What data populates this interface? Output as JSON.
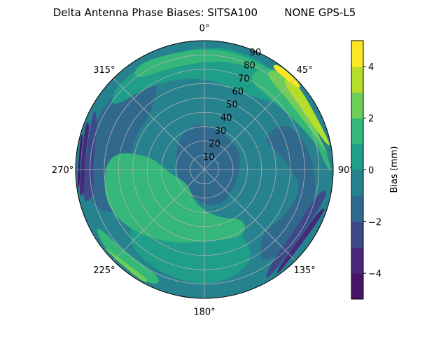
{
  "chart_data": {
    "type": "polar-contour",
    "title": "Delta Antenna Phase Biases: SITSA100        NONE GPS-L5",
    "angle_ticks": [
      {
        "deg": 0,
        "label": "0°"
      },
      {
        "deg": 45,
        "label": "45°"
      },
      {
        "deg": 90,
        "label": "90°"
      },
      {
        "deg": 135,
        "label": "135°"
      },
      {
        "deg": 180,
        "label": "180°"
      },
      {
        "deg": 225,
        "label": "225°"
      },
      {
        "deg": 270,
        "label": "270°"
      },
      {
        "deg": 315,
        "label": "315°"
      }
    ],
    "radial_ticks": [
      10,
      20,
      30,
      40,
      50,
      60,
      70,
      80,
      90
    ],
    "radial_range": [
      0,
      90
    ],
    "angle_direction": "clockwise",
    "angle_zero": "north",
    "colorbar": {
      "label": "Bias (mm)",
      "range": [
        -5,
        5
      ],
      "levels": [
        -5,
        -4,
        -3,
        -2,
        -1,
        0,
        1,
        2,
        3,
        4,
        5
      ],
      "ticks": [
        -4,
        -2,
        0,
        2,
        4
      ],
      "tick_labels": [
        "−4",
        "−2",
        "0",
        "2",
        "4"
      ],
      "colormap": "viridis",
      "colors": [
        "#471365",
        "#482878",
        "#3e4989",
        "#31688e",
        "#26828e",
        "#1f9e89",
        "#35b779",
        "#6ece58",
        "#b5de2b",
        "#fde725"
      ]
    },
    "regions": [
      {
        "level": [
          -2,
          -1
        ],
        "points": [
          [
            0,
            35
          ],
          [
            60,
            30
          ],
          [
            110,
            25
          ],
          [
            160,
            30
          ],
          [
            210,
            22
          ],
          [
            260,
            20
          ],
          [
            320,
            30
          ]
        ]
      },
      {
        "level": [
          -2,
          -1
        ],
        "points": [
          [
            240,
            60
          ],
          [
            260,
            50
          ],
          [
            290,
            55
          ],
          [
            320,
            55
          ],
          [
            335,
            75
          ],
          [
            310,
            85
          ],
          [
            280,
            86
          ],
          [
            250,
            85
          ]
        ]
      },
      {
        "level": [
          -2,
          -1
        ],
        "points": [
          [
            60,
            45
          ],
          [
            80,
            55
          ],
          [
            100,
            70
          ],
          [
            120,
            65
          ],
          [
            140,
            60
          ],
          [
            150,
            80
          ],
          [
            120,
            84
          ],
          [
            90,
            80
          ],
          [
            60,
            70
          ]
        ]
      },
      {
        "level": [
          0,
          1
        ],
        "points": [
          [
            300,
            80
          ],
          [
            330,
            70
          ],
          [
            0,
            65
          ],
          [
            30,
            60
          ],
          [
            50,
            70
          ],
          [
            60,
            82
          ],
          [
            30,
            88
          ],
          [
            0,
            89
          ],
          [
            320,
            88
          ]
        ]
      },
      {
        "level": [
          0,
          1
        ],
        "points": [
          [
            150,
            45
          ],
          [
            180,
            40
          ],
          [
            220,
            40
          ],
          [
            240,
            60
          ],
          [
            220,
            80
          ],
          [
            180,
            85
          ],
          [
            150,
            75
          ]
        ]
      },
      {
        "level": [
          1,
          2
        ],
        "points": [
          [
            195,
            25
          ],
          [
            230,
            15
          ],
          [
            265,
            25
          ],
          [
            285,
            40
          ],
          [
            280,
            70
          ],
          [
            250,
            75
          ],
          [
            225,
            65
          ],
          [
            200,
            55
          ],
          [
            180,
            50
          ],
          [
            150,
            55
          ],
          [
            140,
            45
          ],
          [
            165,
            35
          ]
        ]
      },
      {
        "level": [
          1,
          2
        ],
        "points": [
          [
            320,
            80
          ],
          [
            345,
            75
          ],
          [
            10,
            78
          ],
          [
            35,
            82
          ],
          [
            50,
            88
          ],
          [
            10,
            89
          ],
          [
            330,
            89
          ]
        ]
      },
      {
        "level": [
          1,
          2
        ],
        "points": [
          [
            200,
            82
          ],
          [
            225,
            80
          ],
          [
            245,
            86
          ],
          [
            230,
            90
          ],
          [
            205,
            90
          ]
        ]
      },
      {
        "level": [
          2,
          3
        ],
        "points": [
          [
            205,
            87
          ],
          [
            225,
            86
          ],
          [
            235,
            90
          ],
          [
            210,
            90
          ]
        ]
      },
      {
        "level": [
          1,
          2
        ],
        "points": [
          [
            25,
            70
          ],
          [
            45,
            68
          ],
          [
            75,
            80
          ],
          [
            90,
            86
          ],
          [
            90,
            90
          ],
          [
            45,
            90
          ],
          [
            30,
            84
          ]
        ]
      },
      {
        "level": [
          2,
          3
        ],
        "points": [
          [
            30,
            80
          ],
          [
            50,
            76
          ],
          [
            78,
            84
          ],
          [
            88,
            90
          ],
          [
            40,
            90
          ]
        ]
      },
      {
        "level": [
          3,
          4
        ],
        "points": [
          [
            40,
            83
          ],
          [
            55,
            80
          ],
          [
            80,
            88
          ],
          [
            78,
            90
          ],
          [
            45,
            90
          ]
        ]
      },
      {
        "level": [
          4,
          5
        ],
        "points": [
          [
            33,
            86
          ],
          [
            40,
            85
          ],
          [
            50,
            87
          ],
          [
            48,
            90
          ],
          [
            35,
            90
          ]
        ]
      },
      {
        "level": [
          -3,
          -2
        ],
        "points": [
          [
            255,
            80
          ],
          [
            275,
            78
          ],
          [
            295,
            82
          ],
          [
            300,
            90
          ],
          [
            255,
            90
          ]
        ]
      },
      {
        "level": [
          -4,
          -3
        ],
        "points": [
          [
            258,
            86
          ],
          [
            275,
            84
          ],
          [
            292,
            86
          ],
          [
            292,
            90
          ],
          [
            258,
            90
          ]
        ]
      },
      {
        "level": [
          -5,
          -4
        ],
        "points": [
          [
            262,
            88
          ],
          [
            275,
            87
          ],
          [
            286,
            88
          ],
          [
            286,
            90
          ],
          [
            262,
            90
          ]
        ]
      },
      {
        "level": [
          -3,
          -2
        ],
        "points": [
          [
            100,
            82
          ],
          [
            120,
            76
          ],
          [
            150,
            84
          ],
          [
            150,
            90
          ],
          [
            100,
            90
          ]
        ]
      },
      {
        "level": [
          -4,
          -3
        ],
        "points": [
          [
            108,
            86
          ],
          [
            125,
            82
          ],
          [
            145,
            87
          ],
          [
            145,
            90
          ],
          [
            108,
            90
          ]
        ]
      }
    ]
  }
}
